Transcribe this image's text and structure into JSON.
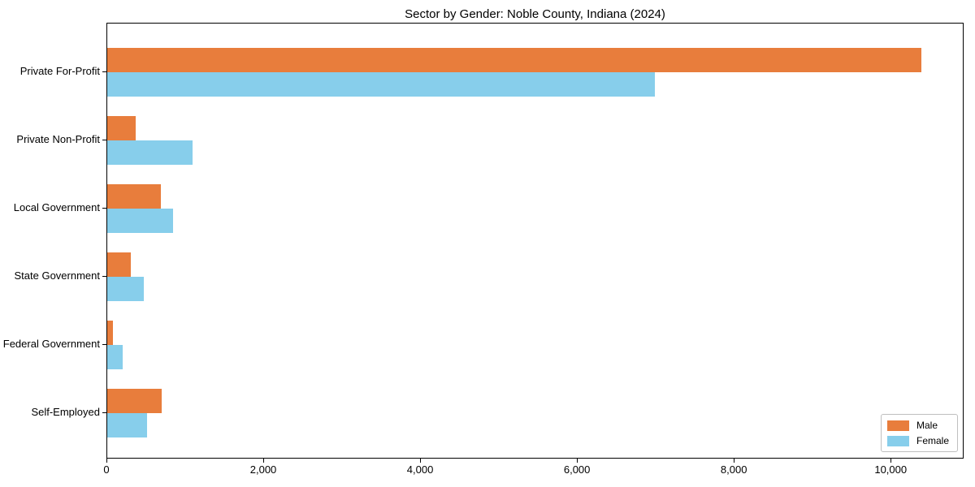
{
  "title": "Sector by Gender: Noble County, Indiana (2024)",
  "chart_data": {
    "type": "bar",
    "orientation": "horizontal",
    "title": "Sector by Gender: Noble County, Indiana (2024)",
    "xlabel": "",
    "ylabel": "",
    "categories": [
      "Private For-Profit",
      "Private Non-Profit",
      "Local Government",
      "State Government",
      "Federal Government",
      "Self-Employed"
    ],
    "series": [
      {
        "name": "Male",
        "color": "#e87d3c",
        "values": [
          10400,
          360,
          685,
          300,
          70,
          695
        ]
      },
      {
        "name": "Female",
        "color": "#87ceeb",
        "values": [
          7000,
          1090,
          840,
          465,
          195,
          510
        ]
      }
    ],
    "xlim": [
      0,
      10930
    ],
    "xticks": [
      0,
      2000,
      4000,
      6000,
      8000,
      10000
    ],
    "xtick_labels": [
      "0",
      "2,000",
      "4,000",
      "6,000",
      "8,000",
      "10,000"
    ],
    "legend": {
      "position": "lower right",
      "entries": [
        "Male",
        "Female"
      ]
    },
    "grid": false
  }
}
